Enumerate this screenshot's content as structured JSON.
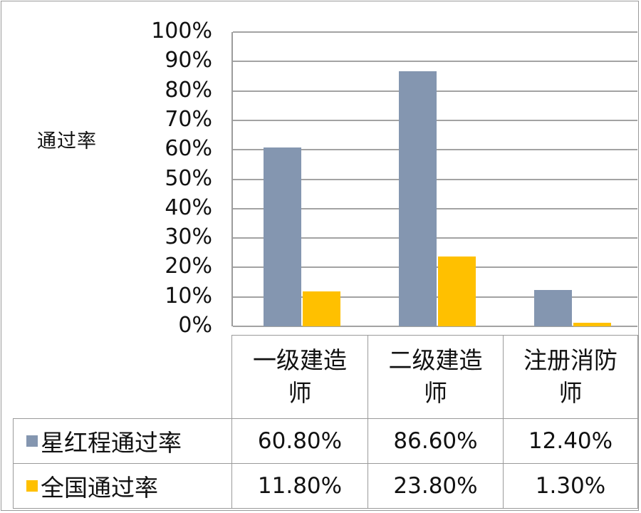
{
  "chart_data": {
    "type": "bar",
    "title": "",
    "xlabel": "",
    "ylabel": "通过率",
    "ylim": [
      0,
      1
    ],
    "yticks": [
      "0%",
      "10%",
      "20%",
      "30%",
      "40%",
      "50%",
      "60%",
      "70%",
      "80%",
      "90%",
      "100%"
    ],
    "grid": true,
    "legend_position": "data-table-left",
    "categories": [
      "一级建造师",
      "二级建造师",
      "注册消防师"
    ],
    "series": [
      {
        "name": "星红程通过率",
        "color": "#8496b0",
        "values": [
          0.608,
          0.866,
          0.124
        ],
        "labels": [
          "60.80%",
          "86.60%",
          "12.40%"
        ]
      },
      {
        "name": "全国通过率",
        "color": "#ffc000",
        "values": [
          0.118,
          0.238,
          0.013
        ],
        "labels": [
          "11.80%",
          "23.80%",
          "1.30%"
        ]
      }
    ]
  },
  "axis": {
    "ylabel": "通过率",
    "ticks": [
      "100%",
      "90%",
      "80%",
      "70%",
      "60%",
      "50%",
      "40%",
      "30%",
      "20%",
      "10%",
      "0%"
    ]
  },
  "table": {
    "headers": [
      [
        "一级建造",
        "师"
      ],
      [
        "二级建造",
        "师"
      ],
      [
        "注册消防",
        "师"
      ]
    ],
    "rows": [
      {
        "label": "星红程通过率",
        "swatch": "#8496b0",
        "cells": [
          "60.80%",
          "86.60%",
          "12.40%"
        ]
      },
      {
        "label": "全国通过率",
        "swatch": "#ffc000",
        "cells": [
          "11.80%",
          "23.80%",
          "1.30%"
        ]
      }
    ]
  }
}
